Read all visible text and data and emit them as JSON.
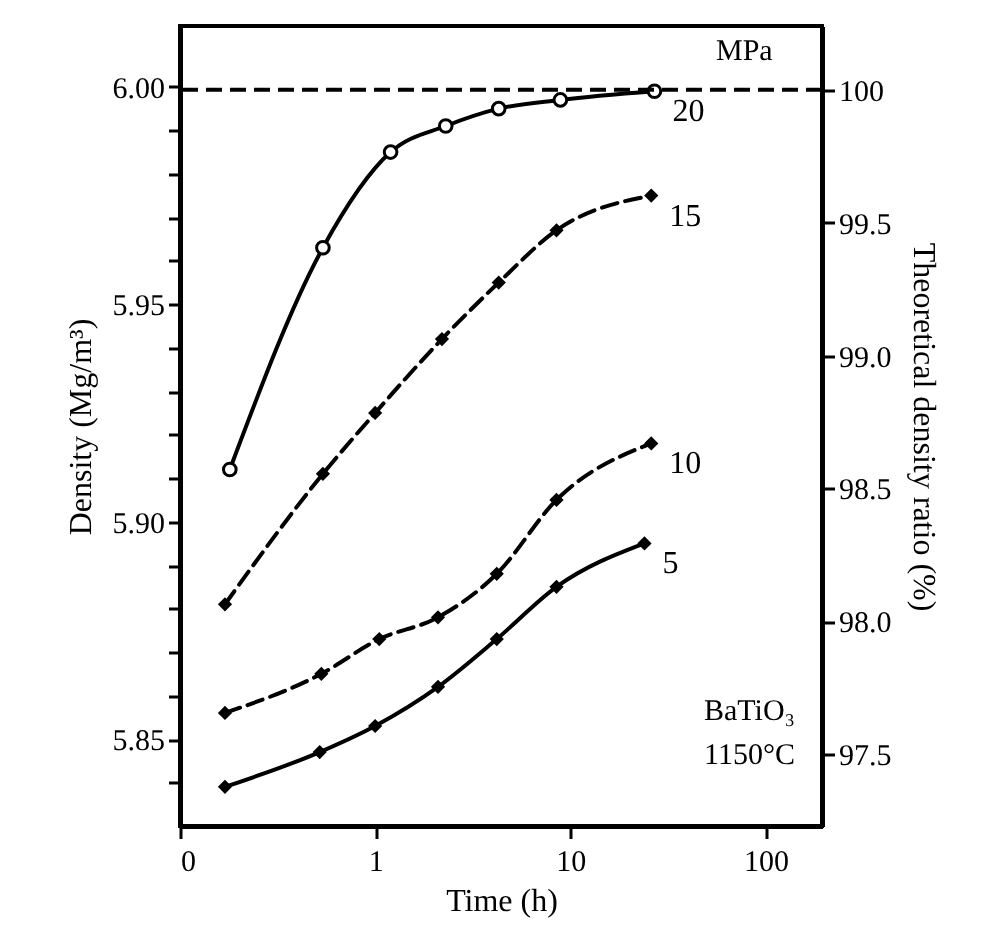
{
  "chart_data": {
    "type": "line",
    "xlabel": "Time (h)",
    "ylabel": "Density  (Mg/m³)",
    "y2label": "Theoretical density ratio (%)",
    "log": "x",
    "grid": false,
    "xlim": [
      0.1,
      195
    ],
    "xticks": [
      {
        "value": 0.1,
        "label": "0"
      },
      1,
      10,
      100
    ],
    "ylim": [
      5.83,
      6.014
    ],
    "yticks": [
      {
        "value": 5.84,
        "label": null
      },
      5.85,
      {
        "value": 5.86,
        "label": null
      },
      {
        "value": 5.87,
        "label": null
      },
      {
        "value": 5.88,
        "label": null
      },
      {
        "value": 5.89,
        "label": null
      },
      {
        "value": 5.9,
        "label": "5.90"
      },
      {
        "value": 5.91,
        "label": null
      },
      {
        "value": 5.92,
        "label": null
      },
      {
        "value": 5.93,
        "label": null
      },
      {
        "value": 5.94,
        "label": null
      },
      5.95,
      {
        "value": 5.96,
        "label": null
      },
      {
        "value": 5.97,
        "label": null
      },
      {
        "value": 5.98,
        "label": null
      },
      {
        "value": 5.99,
        "label": null
      },
      {
        "value": 6.0,
        "label": "6.00"
      }
    ],
    "y2lim": [
      97.23,
      100.24
    ],
    "y2ticks": [
      97.5,
      {
        "value": 98.0,
        "label": "98.0"
      },
      98.5,
      {
        "value": 99.0,
        "label": "99.0"
      },
      99.5,
      100
    ],
    "ref_lines": [
      {
        "axis": "y2",
        "value": 100,
        "line_style": "dashed",
        "color": "#000000"
      }
    ],
    "annotations": [
      "MPa",
      "BaTiO₃",
      "1150°C"
    ],
    "series": [
      {
        "name": "20",
        "color": "#000000",
        "marker": "circle",
        "line_style": "solid",
        "x": [
          0.18,
          0.54,
          1.2,
          2.3,
          4.3,
          8.9,
          27
        ],
        "values": [
          5.912,
          5.963,
          5.985,
          5.991,
          5.995,
          5.997,
          5.999
        ]
      },
      {
        "name": "15",
        "color": "#000000",
        "marker": "diamond",
        "line_style": "dashed",
        "x": [
          0.17,
          0.54,
          1.0,
          2.2,
          4.3,
          8.5,
          26
        ],
        "values": [
          5.881,
          5.911,
          5.925,
          5.942,
          5.955,
          5.967,
          5.975
        ]
      },
      {
        "name": "10",
        "color": "#000000",
        "marker": "diamond",
        "line_style": "dashed",
        "x": [
          0.17,
          0.53,
          1.05,
          2.1,
          4.2,
          8.5,
          26
        ],
        "values": [
          5.856,
          5.865,
          5.873,
          5.878,
          5.888,
          5.905,
          5.918
        ]
      },
      {
        "name": "5",
        "color": "#000000",
        "marker": "diamond",
        "line_style": "solid",
        "x": [
          0.17,
          0.52,
          1.0,
          2.1,
          4.2,
          8.5,
          24
        ],
        "values": [
          5.839,
          5.847,
          5.853,
          5.862,
          5.873,
          5.885,
          5.895
        ]
      }
    ]
  }
}
